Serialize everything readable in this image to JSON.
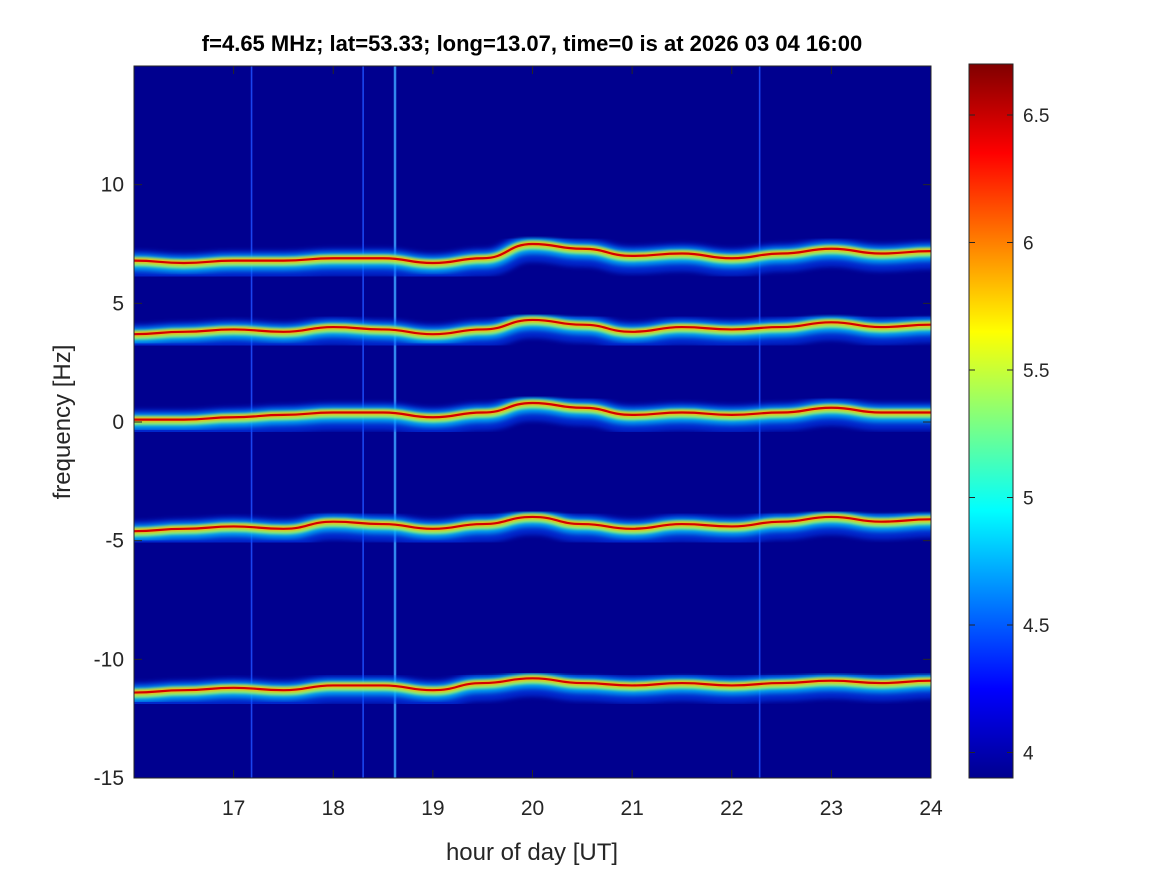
{
  "chart_data": {
    "type": "heatmap",
    "title": "f=4.65 MHz;  lat=53.33; long=13.07, time=0 is at 2026 03 04 16:00",
    "xlabel": "hour of day [UT]",
    "ylabel": "frequency [Hz]",
    "xlim": [
      16.0,
      24.0
    ],
    "ylim": [
      -15,
      15
    ],
    "x_ticks": [
      17,
      18,
      19,
      20,
      21,
      22,
      23,
      24
    ],
    "y_ticks": [
      -15,
      -10,
      -5,
      0,
      5,
      10
    ],
    "colorbar": {
      "colormap": "jet",
      "clim": [
        3.9,
        6.7
      ],
      "ticks": [
        4,
        4.5,
        5,
        5.5,
        6,
        6.5
      ]
    },
    "series": [
      {
        "x": [
          16.0,
          16.5,
          17.0,
          17.5,
          18.0,
          18.5,
          19.0,
          19.5,
          20.0,
          20.5,
          21.0,
          21.5,
          22.0,
          22.5,
          23.0,
          23.5,
          24.0
        ],
        "values": [
          6.8,
          6.7,
          6.8,
          6.8,
          6.9,
          6.9,
          6.7,
          6.9,
          7.5,
          7.3,
          7.0,
          7.1,
          6.9,
          7.1,
          7.3,
          7.1,
          7.2
        ]
      },
      {
        "x": [
          16.0,
          16.5,
          17.0,
          17.5,
          18.0,
          18.5,
          19.0,
          19.5,
          20.0,
          20.5,
          21.0,
          21.5,
          22.0,
          22.5,
          23.0,
          23.5,
          24.0
        ],
        "values": [
          3.7,
          3.8,
          3.9,
          3.8,
          4.0,
          3.9,
          3.7,
          3.9,
          4.3,
          4.1,
          3.8,
          4.0,
          3.9,
          4.0,
          4.2,
          4.0,
          4.1
        ]
      },
      {
        "x": [
          16.0,
          16.5,
          17.0,
          17.5,
          18.0,
          18.5,
          19.0,
          19.5,
          20.0,
          20.5,
          21.0,
          21.5,
          22.0,
          22.5,
          23.0,
          23.5,
          24.0
        ],
        "values": [
          0.1,
          0.1,
          0.2,
          0.3,
          0.4,
          0.4,
          0.2,
          0.4,
          0.8,
          0.6,
          0.3,
          0.4,
          0.3,
          0.4,
          0.6,
          0.4,
          0.4
        ]
      },
      {
        "x": [
          16.0,
          16.5,
          17.0,
          17.5,
          18.0,
          18.5,
          19.0,
          19.5,
          20.0,
          20.5,
          21.0,
          21.5,
          22.0,
          22.5,
          23.0,
          23.5,
          24.0
        ],
        "values": [
          -4.6,
          -4.5,
          -4.4,
          -4.5,
          -4.2,
          -4.3,
          -4.5,
          -4.3,
          -4.0,
          -4.3,
          -4.5,
          -4.3,
          -4.4,
          -4.2,
          -4.0,
          -4.2,
          -4.1
        ]
      },
      {
        "x": [
          16.0,
          16.5,
          17.0,
          17.5,
          18.0,
          18.5,
          19.0,
          19.5,
          20.0,
          20.5,
          21.0,
          21.5,
          22.0,
          22.5,
          23.0,
          23.5,
          24.0
        ],
        "values": [
          -11.4,
          -11.3,
          -11.2,
          -11.3,
          -11.1,
          -11.1,
          -11.3,
          -11.0,
          -10.8,
          -11.0,
          -11.1,
          -11.0,
          -11.1,
          -11.0,
          -10.9,
          -11.0,
          -10.9
        ]
      }
    ],
    "vertical_streaks_x": [
      17.18,
      18.3,
      18.62,
      22.28
    ],
    "grid": false,
    "legend": "none"
  }
}
